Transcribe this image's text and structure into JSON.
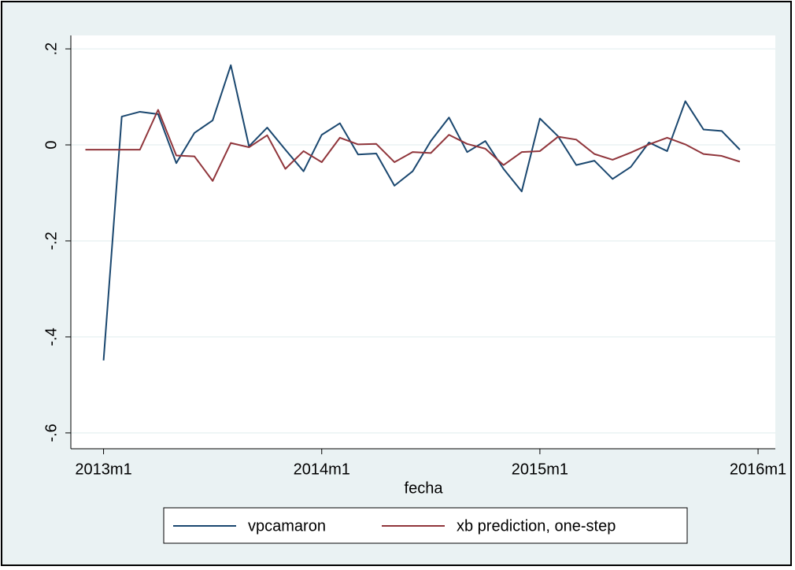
{
  "chart_data": {
    "type": "line",
    "x_label": "fecha",
    "x": [
      635,
      636,
      637,
      638,
      639,
      640,
      641,
      642,
      643,
      644,
      645,
      646,
      647,
      648,
      649,
      650,
      651,
      652,
      653,
      654,
      655,
      656,
      657,
      658,
      659,
      660,
      661,
      662,
      663,
      664,
      665,
      666,
      667,
      668,
      669,
      670,
      671
    ],
    "series": [
      {
        "name": "vpcamaron",
        "color": "#1a476f",
        "values": [
          null,
          -0.449,
          0.059,
          0.069,
          0.064,
          -0.038,
          0.025,
          0.051,
          0.166,
          -0.003,
          0.036,
          -0.01,
          -0.055,
          0.021,
          0.045,
          -0.02,
          -0.018,
          -0.085,
          -0.055,
          0.008,
          0.057,
          -0.015,
          0.008,
          -0.05,
          -0.097,
          0.055,
          0.018,
          -0.042,
          -0.033,
          -0.071,
          -0.046,
          0.005,
          -0.013,
          0.091,
          0.032,
          0.029,
          -0.01
        ]
      },
      {
        "name": "xb prediction, one-step",
        "color": "#90353b",
        "values": [
          -0.01,
          -0.01,
          -0.01,
          -0.01,
          0.073,
          -0.022,
          -0.024,
          -0.075,
          0.004,
          -0.005,
          0.02,
          -0.05,
          -0.013,
          -0.036,
          0.015,
          0.001,
          0.002,
          -0.036,
          -0.015,
          -0.017,
          0.021,
          0.002,
          -0.008,
          -0.042,
          -0.015,
          -0.013,
          0.017,
          0.011,
          -0.019,
          -0.031,
          -0.016,
          0.001,
          0.015,
          0.001,
          -0.019,
          -0.023,
          -0.035
        ]
      }
    ],
    "xlim": [
      634.2,
      672.95
    ],
    "xticks": [
      {
        "value": 636,
        "label": "2013m1"
      },
      {
        "value": 648,
        "label": "2014m1"
      },
      {
        "value": 660,
        "label": "2015m1"
      },
      {
        "value": 672,
        "label": "2016m1"
      }
    ],
    "ylim": [
      -0.633,
      0.228
    ],
    "yticks": [
      {
        "value": -0.6,
        "label": "-.6"
      },
      {
        "value": -0.4,
        "label": "-.4"
      },
      {
        "value": -0.2,
        "label": "-.2"
      },
      0,
      {
        "value": 0.2,
        "label": ".2"
      }
    ],
    "grid": true,
    "legend": "bottom"
  }
}
